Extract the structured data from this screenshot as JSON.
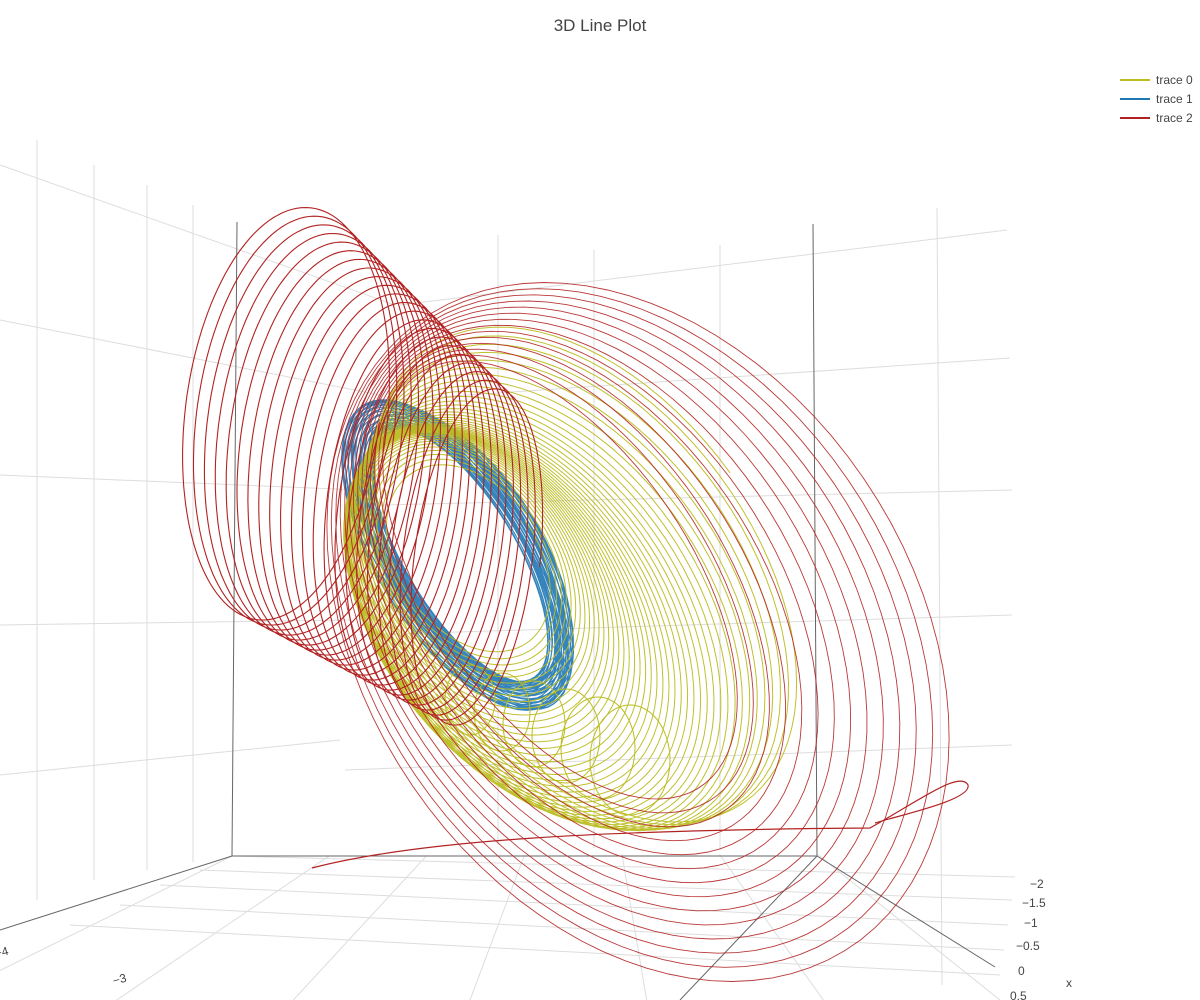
{
  "chart_data": {
    "type": "line",
    "title": "3D Line Plot",
    "legend_position": "top-right",
    "series": [
      {
        "name": "trace 0",
        "color": "#bcbd22"
      },
      {
        "name": "trace 1",
        "color": "#1f77b4"
      },
      {
        "name": "trace 2",
        "color": "#b22222"
      }
    ],
    "x_axis": {
      "title": "x",
      "tick_labels": [
        "−2",
        "−1.5",
        "−1",
        "−0.5",
        "0",
        "0.5"
      ]
    },
    "y_axis": {
      "tick_labels": [
        "−4",
        "−3"
      ]
    },
    "grid": true
  }
}
